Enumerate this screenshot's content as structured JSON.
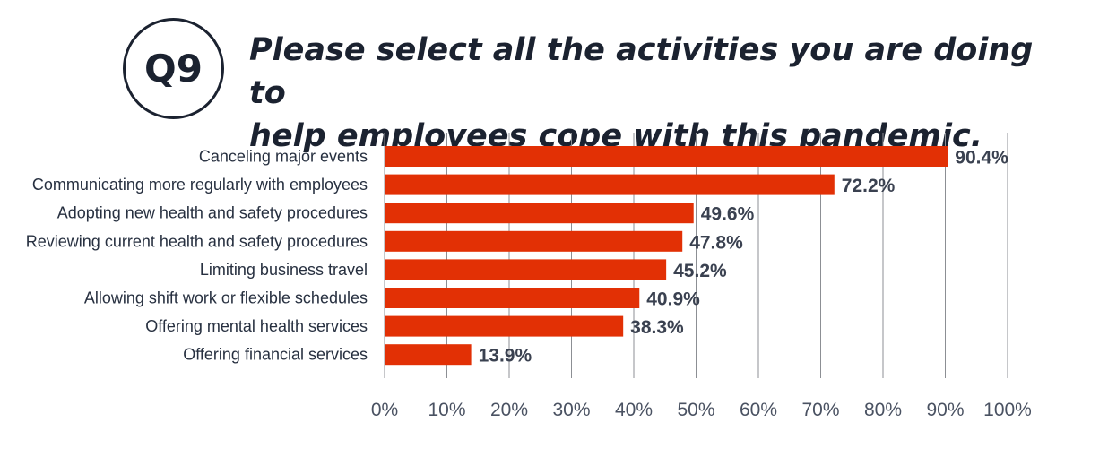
{
  "badge": "Q9",
  "title_lines": [
    "Please select all the activities you are doing to",
    "help employees cope with this pandemic."
  ],
  "colors": {
    "bar": "#e23005",
    "grid": "#8c8f94",
    "text": "#1b2230"
  },
  "chart_data": {
    "type": "bar",
    "orientation": "horizontal",
    "categories": [
      "Canceling major events",
      "Communicating more regularly with employees",
      "Adopting new health and safety procedures",
      "Reviewing current health and safety procedures",
      "Limiting business travel",
      "Allowing shift work or flexible schedules",
      "Offering mental health services",
      "Offering financial services"
    ],
    "values": [
      90.4,
      72.2,
      49.6,
      47.8,
      45.2,
      40.9,
      38.3,
      13.9
    ],
    "value_labels": [
      "90.4%",
      "72.2%",
      "49.6%",
      "47.8%",
      "45.2%",
      "40.9%",
      "38.3%",
      "13.9%"
    ],
    "xlim": [
      0,
      100
    ],
    "x_ticks": [
      0,
      10,
      20,
      30,
      40,
      50,
      60,
      70,
      80,
      90,
      100
    ],
    "x_tick_labels": [
      "0%",
      "10%",
      "20%",
      "30%",
      "40%",
      "50%",
      "60%",
      "70%",
      "80%",
      "90%",
      "100%"
    ],
    "grid": true
  }
}
